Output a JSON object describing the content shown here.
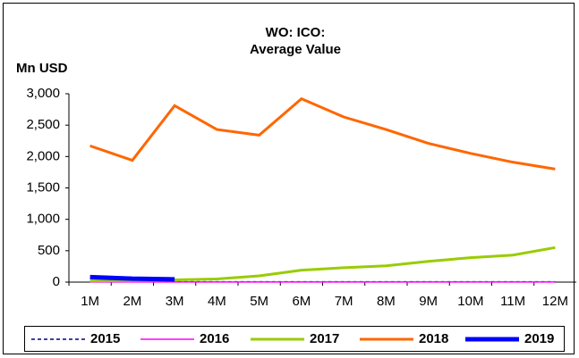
{
  "chart_data": {
    "type": "line",
    "title": [
      "WO: ICO:",
      "Average Value"
    ],
    "y_label": "Mn USD",
    "categories": [
      "1M",
      "2M",
      "3M",
      "4M",
      "5M",
      "6M",
      "7M",
      "8M",
      "9M",
      "10M",
      "11M",
      "12M"
    ],
    "series": [
      {
        "name": "2015",
        "color": "#000080",
        "linestyle": "dashed",
        "values": [
          5,
          5,
          5,
          5,
          5,
          5,
          5,
          5,
          5,
          5,
          5,
          5
        ]
      },
      {
        "name": "2016",
        "color": "#ff00ff",
        "linestyle": "solid",
        "values": [
          2,
          2,
          2,
          2,
          2,
          2,
          2,
          2,
          2,
          2,
          2,
          2
        ]
      },
      {
        "name": "2017",
        "color": "#99cc00",
        "linestyle": "solid",
        "values": [
          20,
          25,
          35,
          50,
          100,
          190,
          230,
          260,
          330,
          390,
          430,
          550
        ]
      },
      {
        "name": "2018",
        "color": "#ff6600",
        "linestyle": "solid",
        "values": [
          2170,
          1940,
          2810,
          2430,
          2340,
          2920,
          2630,
          2430,
          2210,
          2050,
          1910,
          1800
        ]
      },
      {
        "name": "2019",
        "color": "#0000ff",
        "linestyle": "solid",
        "values": [
          80,
          55,
          45,
          null,
          null,
          null,
          null,
          null,
          null,
          null,
          null,
          null
        ]
      }
    ],
    "ylim": [
      0,
      3000
    ],
    "yticks": [
      0,
      500,
      {
        "value": 1000,
        "label": "1,000"
      },
      {
        "value": 1500,
        "label": "1,500"
      },
      {
        "value": 2000,
        "label": "2,000"
      },
      {
        "value": 2500,
        "label": "2,500"
      },
      {
        "value": 3000,
        "label": "3,000"
      }
    ],
    "grid": false,
    "legend": "bottom"
  }
}
